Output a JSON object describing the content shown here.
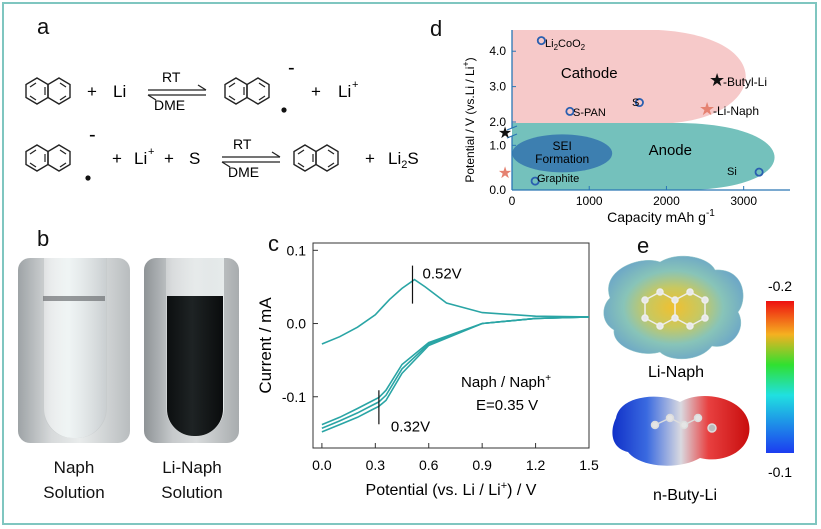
{
  "panels": {
    "a": "a",
    "b": "b",
    "c": "c",
    "d": "d",
    "e": "e"
  },
  "reaction1": {
    "plus1": "+",
    "reagent": "Li",
    "top": "RT",
    "bottom": "DME",
    "charge": "-",
    "plus2": "+",
    "product": "Li",
    "product_sup": "+"
  },
  "reaction2": {
    "charge": "-",
    "plus1": "+",
    "li": "Li",
    "li_sup": "+",
    "plus2": "+",
    "s": "S",
    "top": "RT",
    "bottom": "DME",
    "plus3": "+",
    "li2s_main": "Li",
    "li2s_sub": "2",
    "li2s_end": "S"
  },
  "photo": {
    "left_label_1": "Naph",
    "left_label_2": "Solution",
    "right_label_1": "Li-Naph",
    "right_label_2": "Solution"
  },
  "chart_data": [
    {
      "type": "line",
      "panel": "c",
      "xlabel_pre": "Potential (vs. Li / Li",
      "xlabel_sup": "+",
      "xlabel_post": ") / V",
      "ylabel": "Current / mA",
      "xlim": [
        -0.05,
        1.5
      ],
      "ylim": [
        -0.17,
        0.11
      ],
      "xticks": [
        "0.0",
        "0.3",
        "0.6",
        "0.9",
        "1.2",
        "1.5"
      ],
      "yticks": [
        "0.1",
        "0.0",
        "-0.1"
      ],
      "x_tick_values": [
        0.0,
        0.3,
        0.6,
        0.9,
        1.2,
        1.5
      ],
      "y_tick_values": [
        0.1,
        0.0,
        -0.1
      ],
      "color": "#2aa5a5",
      "series": [
        {
          "x": [
            0.0,
            0.1,
            0.2,
            0.3,
            0.33,
            0.38,
            0.45,
            0.52,
            0.58,
            0.7,
            0.9,
            1.2,
            1.5
          ],
          "y": [
            -0.028,
            -0.018,
            -0.005,
            0.012,
            0.02,
            0.033,
            0.048,
            0.06,
            0.05,
            0.028,
            0.015,
            0.01,
            0.009
          ]
        },
        {
          "x": [
            1.5,
            1.2,
            0.9,
            0.6,
            0.45,
            0.36,
            0.32,
            0.28,
            0.2,
            0.1,
            0.0
          ],
          "y": [
            0.009,
            0.007,
            0.0,
            -0.03,
            -0.068,
            -0.105,
            -0.113,
            -0.118,
            -0.128,
            -0.138,
            -0.148
          ]
        },
        {
          "x": [
            1.5,
            1.2,
            0.9,
            0.6,
            0.45,
            0.36,
            0.32,
            0.28,
            0.2,
            0.1,
            0.0
          ],
          "y": [
            0.009,
            0.007,
            0.0,
            -0.028,
            -0.062,
            -0.098,
            -0.107,
            -0.112,
            -0.122,
            -0.133,
            -0.143
          ]
        },
        {
          "x": [
            1.5,
            1.2,
            0.9,
            0.6,
            0.45,
            0.36,
            0.32,
            0.28,
            0.2,
            0.1,
            0.0
          ],
          "y": [
            0.009,
            0.007,
            0.0,
            -0.026,
            -0.056,
            -0.091,
            -0.101,
            -0.106,
            -0.116,
            -0.128,
            -0.138
          ]
        }
      ],
      "annotations": [
        {
          "text": "0.52V",
          "x": 0.52,
          "y": 0.06
        },
        {
          "text": "0.32V",
          "x": 0.32,
          "y": -0.113
        }
      ],
      "note_1_pre": "Naph / Naph",
      "note_1_sup": "+",
      "note_2": "E=0.35 V"
    },
    {
      "type": "scatter",
      "panel": "d",
      "xlabel_pre": "Capacity mAh g",
      "xlabel_sup": "-1",
      "ylabel_pre": "Potential / V (vs.Li / Li",
      "ylabel_sup": "+",
      "ylabel_post": ")",
      "xticks": [
        "0",
        "1000",
        "2000",
        "3000"
      ],
      "x_tick_values": [
        0,
        1000,
        2000,
        3000
      ],
      "yticks": [
        "0.0",
        "1.0",
        "2.0",
        "3.0",
        "4.0"
      ],
      "y_tick_values": [
        0,
        1,
        2,
        3,
        4
      ],
      "xlim": [
        0,
        3600
      ],
      "regions": [
        {
          "name": "Cathode",
          "color": "#f6c9c9"
        },
        {
          "name": "Anode",
          "color": "#74c1bc"
        },
        {
          "name_1": "SEI",
          "name_2": "Formation",
          "color": "#3d7fb0"
        }
      ],
      "points": [
        {
          "label_main": "Li",
          "label_sub1": "2",
          "label_mid": "CoO",
          "label_sub2": "2",
          "x": 380,
          "y": 4.3
        },
        {
          "label": "S-PAN",
          "x": 750,
          "y": 2.3
        },
        {
          "label": "S",
          "x": 1650,
          "y": 2.55
        },
        {
          "label": "Si",
          "x": 3200,
          "y": 0.4
        },
        {
          "label": "Graphite",
          "x": 300,
          "y": 0.2
        }
      ],
      "legend": [
        {
          "label": "-Butyl-Li",
          "marker": "black-star"
        },
        {
          "label": "-Li-Naph",
          "marker": "salmon-star"
        }
      ],
      "stars": [
        {
          "marker": "black-star",
          "y": 1.3
        },
        {
          "marker": "salmon-star",
          "y": 0.4
        }
      ]
    }
  ],
  "esp": {
    "top_label": "Li-Naph",
    "bottom_label": "n-Buty-Li",
    "scale_max": "-0.2",
    "scale_min": "-0.1"
  }
}
